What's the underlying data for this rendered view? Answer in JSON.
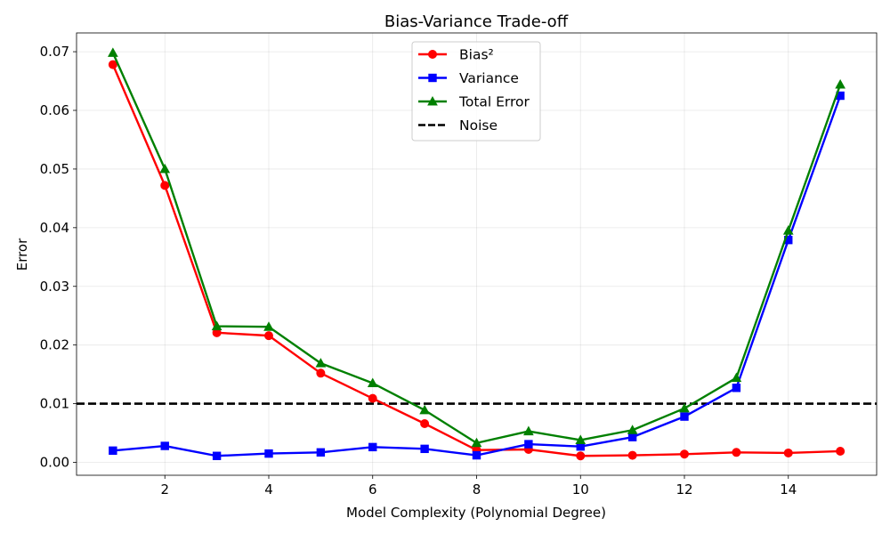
{
  "chart_data": {
    "type": "line",
    "title": "Bias-Variance Trade-off",
    "xlabel": "Model Complexity (Polynomial Degree)",
    "ylabel": "Error",
    "xlim": [
      0.3,
      15.7
    ],
    "ylim": [
      -0.0022,
      0.0732
    ],
    "grid": true,
    "legend_position": "upper-center",
    "x_ticks": [
      2,
      4,
      6,
      8,
      10,
      12,
      14
    ],
    "x_tick_labels": [
      "2",
      "4",
      "6",
      "8",
      "10",
      "12",
      "14"
    ],
    "y_ticks": [
      0,
      0.01,
      0.02,
      0.03,
      0.04,
      0.05,
      0.06,
      0.07
    ],
    "y_tick_labels": [
      "0.00",
      "0.01",
      "0.02",
      "0.03",
      "0.04",
      "0.05",
      "0.06",
      "0.07"
    ],
    "x": [
      1,
      2,
      3,
      4,
      5,
      6,
      7,
      8,
      9,
      10,
      11,
      12,
      13,
      14,
      15
    ],
    "series": [
      {
        "name": "Bias²",
        "color": "#ff0000",
        "marker": "circle",
        "values": [
          0.0678,
          0.0472,
          0.0221,
          0.0216,
          0.0152,
          0.0109,
          0.0066,
          0.0021,
          0.0022,
          0.0011,
          0.0012,
          0.0014,
          0.0017,
          0.0016,
          0.0019
        ]
      },
      {
        "name": "Variance",
        "color": "#0000ff",
        "marker": "square",
        "values": [
          0.002,
          0.0028,
          0.0011,
          0.0015,
          0.0017,
          0.0026,
          0.0023,
          0.0012,
          0.0031,
          0.0027,
          0.0043,
          0.0078,
          0.0127,
          0.0379,
          0.0625
        ]
      },
      {
        "name": "Total Error",
        "color": "#008000",
        "marker": "triangle",
        "values": [
          0.0698,
          0.05,
          0.0232,
          0.0231,
          0.0169,
          0.0135,
          0.0089,
          0.0033,
          0.0053,
          0.0038,
          0.0055,
          0.0092,
          0.0144,
          0.0395,
          0.0644
        ]
      }
    ],
    "reference_lines": [
      {
        "name": "Noise",
        "y": 0.01,
        "color": "#000000",
        "style": "dashed"
      }
    ]
  }
}
